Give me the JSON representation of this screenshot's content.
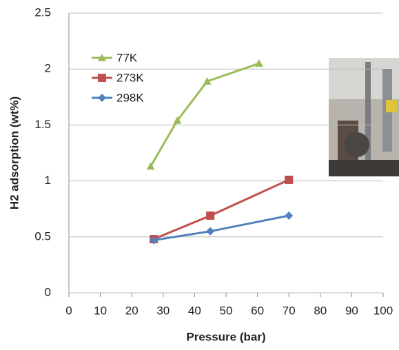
{
  "chart_data": {
    "type": "line",
    "x_label": "Pressure (bar)",
    "y_label": "H2 adsorption (wt%)",
    "xlim": [
      0,
      100
    ],
    "xticks": [
      0,
      10,
      20,
      30,
      40,
      50,
      60,
      70,
      80,
      90,
      100
    ],
    "ylim": [
      0,
      2.5
    ],
    "yticks": [
      0,
      0.5,
      1,
      1.5,
      2,
      2.5
    ],
    "grid": true,
    "legend": "upper left",
    "series": [
      {
        "name": "77K",
        "color": "#9bbb59",
        "marker": "triangle",
        "x": [
          26,
          34.5,
          44,
          60.5
        ],
        "values": [
          1.13,
          1.54,
          1.89,
          2.05
        ]
      },
      {
        "name": "273K",
        "color": "#c0504d",
        "marker": "square",
        "x": [
          27,
          45,
          70
        ],
        "values": [
          0.48,
          0.69,
          1.01
        ]
      },
      {
        "name": "298K",
        "color": "#4f81bd",
        "marker": "diamond",
        "x": [
          27,
          45,
          70
        ],
        "values": [
          0.47,
          0.55,
          0.69
        ]
      }
    ]
  }
}
